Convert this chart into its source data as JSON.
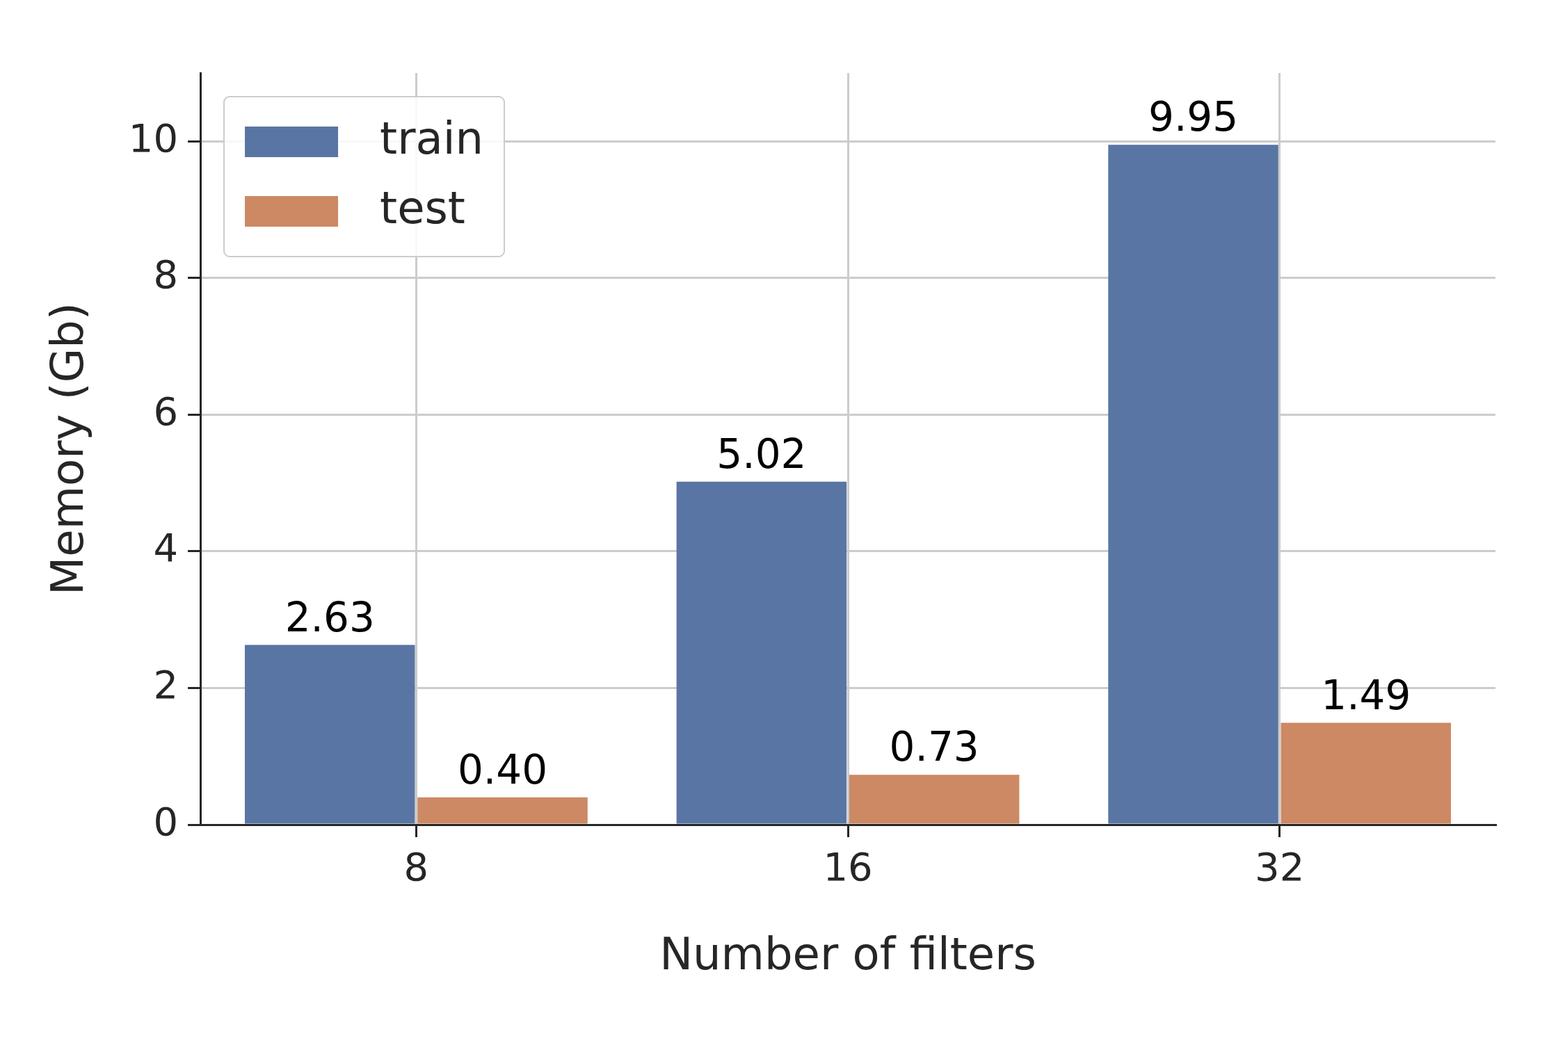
{
  "chart_data": {
    "type": "bar",
    "xlabel": "Number of filters",
    "ylabel": "Memory (Gb)",
    "categories": [
      "8",
      "16",
      "32"
    ],
    "series": [
      {
        "name": "train",
        "color": "#5975a4",
        "values": [
          2.63,
          5.02,
          9.95
        ],
        "value_labels": [
          "2.63",
          "5.02",
          "9.95"
        ]
      },
      {
        "name": "test",
        "color": "#cc8963",
        "values": [
          0.4,
          0.73,
          1.49
        ],
        "value_labels": [
          "0.40",
          "0.73",
          "1.49"
        ]
      }
    ],
    "ylim": [
      0,
      11
    ],
    "yticks": [
      0,
      2,
      4,
      6,
      8,
      10
    ],
    "grid": true,
    "legend": "top left"
  }
}
